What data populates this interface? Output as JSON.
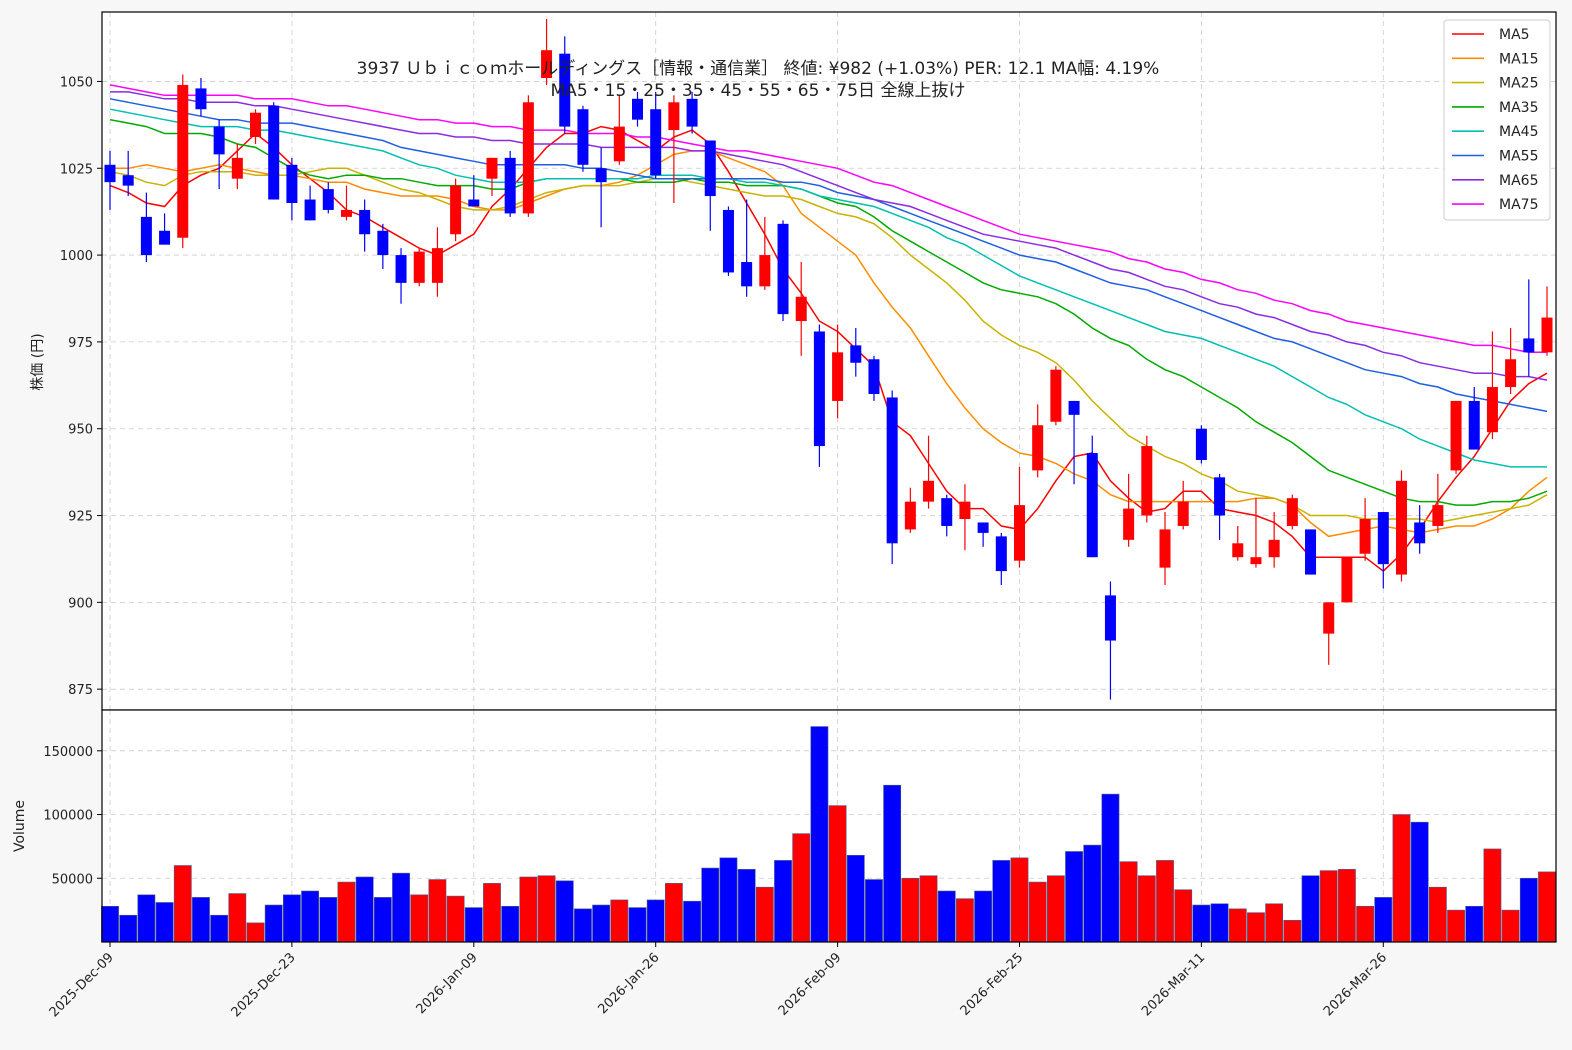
{
  "chart_data": {
    "type": "candlestick",
    "title_line1": "3937 Ｕｂｉｃｏｍホールディングス［情報・通信業］ 終値: ¥982 (+1.03%)  PER: 12.1  MA幅: 4.19%",
    "title_line2": "MA5・15・25・35・45・55・65・75日 全線上抜け",
    "ylabel_price": "株価 (円)",
    "ylabel_volume": "Volume",
    "price_ylim": [
      869,
      1070
    ],
    "price_yticks": [
      875,
      900,
      925,
      950,
      975,
      1000,
      1025,
      1050
    ],
    "volume_ylim": [
      0,
      182000
    ],
    "volume_yticks": [
      50000,
      100000,
      150000
    ],
    "xtick_labels": [
      {
        "index": 0,
        "label": "2025-Dec-09"
      },
      {
        "index": 10,
        "label": "2025-Dec-23"
      },
      {
        "index": 20,
        "label": "2026-Jan-09"
      },
      {
        "index": 30,
        "label": "2026-Jan-26"
      },
      {
        "index": 40,
        "label": "2026-Feb-09"
      },
      {
        "index": 50,
        "label": "2026-Feb-25"
      },
      {
        "index": 60,
        "label": "2026-Mar-11"
      },
      {
        "index": 70,
        "label": "2026-Mar-26"
      }
    ],
    "grid": true,
    "legend_position": "top-right",
    "up_color": "#ff0000",
    "down_color": "#0000ff",
    "candles": [
      [
        1026,
        1030,
        1013,
        1021,
        28000
      ],
      [
        1023,
        1030,
        1017,
        1020,
        21000
      ],
      [
        1011,
        1018,
        998,
        1000,
        37000
      ],
      [
        1007,
        1012,
        1003,
        1003,
        31000
      ],
      [
        1005,
        1052,
        1002,
        1049,
        60000
      ],
      [
        1048,
        1051,
        1040,
        1042,
        35000
      ],
      [
        1037,
        1039,
        1019,
        1029,
        21000
      ],
      [
        1022,
        1032,
        1019,
        1028,
        38000
      ],
      [
        1034,
        1042,
        1032,
        1041,
        15000
      ],
      [
        1043,
        1044,
        1016,
        1016,
        29000
      ],
      [
        1026,
        1028,
        1010,
        1015,
        37000
      ],
      [
        1016,
        1020,
        1010,
        1010,
        40000
      ],
      [
        1019,
        1021,
        1012,
        1013,
        35000
      ],
      [
        1011,
        1020,
        1010,
        1013,
        47000
      ],
      [
        1013,
        1016,
        1001,
        1006,
        51000
      ],
      [
        1007,
        1009,
        996,
        1000,
        35000
      ],
      [
        1000,
        1002,
        986,
        992,
        54000
      ],
      [
        992,
        1002,
        991,
        1001,
        37000
      ],
      [
        992,
        1008,
        988,
        1002,
        49000
      ],
      [
        1006,
        1022,
        1004,
        1020,
        36000
      ],
      [
        1016,
        1023,
        1014,
        1014,
        27000
      ],
      [
        1022,
        1028,
        1017,
        1028,
        46000
      ],
      [
        1028,
        1030,
        1011,
        1012,
        28000
      ],
      [
        1012,
        1046,
        1011,
        1044,
        51000
      ],
      [
        1051,
        1068,
        1049,
        1059,
        52000
      ],
      [
        1058,
        1063,
        1035,
        1037,
        48000
      ],
      [
        1042,
        1043,
        1024,
        1026,
        26000
      ],
      [
        1025,
        1031,
        1008,
        1021,
        29000
      ],
      [
        1027,
        1046,
        1026,
        1037,
        33000
      ],
      [
        1045,
        1047,
        1037,
        1039,
        27000
      ],
      [
        1042,
        1047,
        1022,
        1023,
        33000
      ],
      [
        1036,
        1046,
        1015,
        1044,
        46000
      ],
      [
        1045,
        1047,
        1035,
        1037,
        32000
      ],
      [
        1033,
        1033,
        1007,
        1017,
        58000
      ],
      [
        1013,
        1014,
        994,
        995,
        66000
      ],
      [
        998,
        1016,
        988,
        991,
        57000
      ],
      [
        991,
        1011,
        990,
        1000,
        43000
      ],
      [
        1009,
        1010,
        981,
        983,
        64000
      ],
      [
        981,
        998,
        971,
        988,
        85000
      ],
      [
        978,
        980,
        939,
        945,
        169000
      ],
      [
        958,
        980,
        953,
        972,
        107000
      ],
      [
        974,
        979,
        965,
        969,
        68000
      ],
      [
        970,
        971,
        958,
        960,
        49000
      ],
      [
        959,
        961,
        911,
        917,
        123000
      ],
      [
        921,
        933,
        920,
        929,
        50000
      ],
      [
        929,
        948,
        927,
        935,
        52000
      ],
      [
        930,
        931,
        919,
        922,
        40000
      ],
      [
        924,
        934,
        915,
        929,
        34000
      ],
      [
        923,
        923,
        916,
        920,
        40000
      ],
      [
        919,
        920,
        905,
        909,
        64000
      ],
      [
        912,
        939,
        910,
        928,
        66000
      ],
      [
        938,
        957,
        936,
        951,
        47000
      ],
      [
        952,
        968,
        951,
        967,
        52000
      ],
      [
        958,
        958,
        934,
        954,
        71000
      ],
      [
        943,
        948,
        913,
        913,
        76000
      ],
      [
        902,
        906,
        872,
        889,
        116000
      ],
      [
        918,
        937,
        916,
        927,
        63000
      ],
      [
        925,
        948,
        923,
        945,
        52000
      ],
      [
        910,
        926,
        905,
        921,
        64000
      ],
      [
        922,
        935,
        921,
        929,
        41000
      ],
      [
        950,
        951,
        940,
        941,
        29000
      ],
      [
        936,
        937,
        918,
        925,
        30000
      ],
      [
        913,
        922,
        912,
        917,
        26000
      ],
      [
        911,
        930,
        910,
        913,
        23000
      ],
      [
        913,
        926,
        910,
        918,
        30000
      ],
      [
        922,
        931,
        921,
        930,
        17000
      ],
      [
        921,
        921,
        908,
        908,
        52000
      ],
      [
        891,
        900,
        882,
        900,
        56000
      ],
      [
        900,
        913,
        900,
        913,
        57000
      ],
      [
        914,
        930,
        912,
        924,
        28000
      ],
      [
        926,
        926,
        904,
        911,
        35000
      ],
      [
        908,
        938,
        906,
        935,
        100000
      ],
      [
        923,
        928,
        914,
        917,
        94000
      ],
      [
        922,
        937,
        920,
        928,
        43000
      ],
      [
        938,
        958,
        937,
        958,
        25000
      ],
      [
        958,
        962,
        944,
        944,
        28000
      ],
      [
        949,
        978,
        947,
        962,
        73000
      ],
      [
        962,
        979,
        960,
        970,
        25000
      ],
      [
        976,
        993,
        965,
        972,
        50000
      ],
      [
        972,
        991,
        971,
        982,
        55000
      ]
    ],
    "series": [
      {
        "name": "MA5",
        "color": "#ff0000",
        "values": [
          1020,
          1018,
          1015,
          1014,
          1020,
          1023,
          1025,
          1030,
          1035,
          1031,
          1026,
          1022,
          1018,
          1013,
          1011,
          1008,
          1005,
          1002,
          1000,
          1003,
          1006,
          1014,
          1019,
          1025,
          1031,
          1035,
          1035,
          1037,
          1036,
          1033,
          1030,
          1034,
          1036,
          1032,
          1024,
          1015,
          1006,
          996,
          989,
          981,
          978,
          973,
          968,
          952,
          948,
          940,
          932,
          927,
          927,
          922,
          921,
          927,
          935,
          942,
          943,
          935,
          930,
          926,
          927,
          932,
          932,
          927,
          926,
          925,
          923,
          919,
          913,
          913,
          913,
          913,
          909,
          914,
          921,
          929,
          936,
          942,
          950,
          958,
          963,
          966
        ]
      },
      {
        "name": "MA15",
        "color": "#ff8c00",
        "values": [
          1025,
          1025,
          1026,
          1025,
          1024,
          1025,
          1026,
          1025,
          1024,
          1023,
          1023,
          1022,
          1021,
          1021,
          1019,
          1018,
          1017,
          1017,
          1017,
          1016,
          1014,
          1013,
          1013,
          1015,
          1017,
          1019,
          1020,
          1020,
          1021,
          1023,
          1026,
          1029,
          1030,
          1030,
          1028,
          1026,
          1024,
          1020,
          1012,
          1008,
          1004,
          1000,
          992,
          985,
          979,
          971,
          963,
          956,
          950,
          946,
          943,
          942,
          940,
          937,
          935,
          931,
          929,
          929,
          929,
          929,
          929,
          929,
          929,
          930,
          930,
          928,
          923,
          919,
          920,
          921,
          922,
          921,
          920,
          921,
          922,
          922,
          924,
          927,
          932,
          936
        ]
      },
      {
        "name": "MA25",
        "color": "#c8b400",
        "values": [
          1024,
          1023,
          1021,
          1020,
          1023,
          1024,
          1024,
          1024,
          1023,
          1023,
          1023,
          1024,
          1025,
          1025,
          1023,
          1021,
          1019,
          1018,
          1016,
          1014,
          1013,
          1013,
          1014,
          1016,
          1018,
          1019,
          1020,
          1020,
          1020,
          1021,
          1022,
          1022,
          1021,
          1020,
          1019,
          1018,
          1017,
          1017,
          1016,
          1014,
          1012,
          1011,
          1009,
          1005,
          1000,
          996,
          992,
          987,
          981,
          977,
          974,
          972,
          969,
          964,
          958,
          953,
          948,
          945,
          942,
          940,
          937,
          935,
          932,
          931,
          930,
          928,
          925,
          925,
          925,
          924,
          924,
          924,
          924,
          923,
          924,
          925,
          926,
          927,
          928,
          931
        ]
      },
      {
        "name": "MA35",
        "color": "#00aa00",
        "values": [
          1039,
          1038,
          1037,
          1035,
          1035,
          1035,
          1034,
          1032,
          1031,
          1028,
          1025,
          1023,
          1022,
          1023,
          1023,
          1022,
          1022,
          1021,
          1020,
          1020,
          1020,
          1019,
          1019,
          1021,
          1022,
          1022,
          1022,
          1022,
          1022,
          1021,
          1021,
          1021,
          1022,
          1021,
          1021,
          1020,
          1020,
          1020,
          1019,
          1017,
          1015,
          1014,
          1011,
          1007,
          1004,
          1001,
          998,
          995,
          992,
          990,
          989,
          988,
          986,
          983,
          979,
          976,
          974,
          970,
          967,
          965,
          962,
          959,
          956,
          952,
          949,
          946,
          942,
          938,
          936,
          934,
          932,
          930,
          929,
          929,
          928,
          928,
          929,
          929,
          930,
          932
        ]
      },
      {
        "name": "MA45",
        "color": "#00bfb0",
        "values": [
          1042,
          1041,
          1040,
          1039,
          1038,
          1037,
          1037,
          1037,
          1036,
          1036,
          1035,
          1034,
          1033,
          1032,
          1031,
          1030,
          1028,
          1026,
          1025,
          1023,
          1022,
          1021,
          1021,
          1021,
          1022,
          1022,
          1022,
          1022,
          1022,
          1022,
          1023,
          1023,
          1023,
          1022,
          1022,
          1021,
          1021,
          1020,
          1019,
          1017,
          1016,
          1015,
          1014,
          1012,
          1010,
          1008,
          1005,
          1003,
          1000,
          997,
          994,
          992,
          990,
          988,
          986,
          984,
          982,
          980,
          978,
          977,
          976,
          974,
          972,
          970,
          968,
          965,
          962,
          959,
          957,
          954,
          952,
          950,
          947,
          945,
          943,
          941,
          940,
          939,
          939,
          939
        ]
      },
      {
        "name": "MA55",
        "color": "#1f5fe0",
        "values": [
          1045,
          1044,
          1043,
          1042,
          1041,
          1040,
          1039,
          1039,
          1038,
          1038,
          1038,
          1037,
          1036,
          1035,
          1034,
          1033,
          1031,
          1030,
          1029,
          1028,
          1027,
          1026,
          1026,
          1026,
          1026,
          1026,
          1025,
          1025,
          1024,
          1023,
          1022,
          1022,
          1022,
          1022,
          1022,
          1022,
          1022,
          1021,
          1021,
          1020,
          1018,
          1017,
          1016,
          1014,
          1012,
          1010,
          1008,
          1006,
          1004,
          1002,
          1000,
          999,
          998,
          996,
          994,
          992,
          991,
          990,
          988,
          986,
          984,
          982,
          980,
          978,
          976,
          975,
          973,
          971,
          969,
          967,
          966,
          965,
          963,
          962,
          960,
          959,
          958,
          957,
          956,
          955
        ]
      },
      {
        "name": "MA65",
        "color": "#8a2be2",
        "values": [
          1047,
          1047,
          1046,
          1045,
          1045,
          1044,
          1044,
          1044,
          1043,
          1043,
          1042,
          1041,
          1040,
          1039,
          1038,
          1037,
          1036,
          1035,
          1035,
          1034,
          1034,
          1033,
          1033,
          1032,
          1032,
          1032,
          1032,
          1031,
          1031,
          1031,
          1031,
          1031,
          1030,
          1030,
          1029,
          1028,
          1027,
          1026,
          1024,
          1022,
          1020,
          1018,
          1016,
          1015,
          1014,
          1012,
          1010,
          1008,
          1006,
          1005,
          1004,
          1003,
          1002,
          1000,
          998,
          996,
          995,
          993,
          991,
          990,
          988,
          986,
          985,
          983,
          982,
          980,
          978,
          977,
          975,
          974,
          972,
          971,
          969,
          968,
          967,
          966,
          966,
          965,
          965,
          964
        ]
      },
      {
        "name": "MA75",
        "color": "#ff00ff",
        "values": [
          1049,
          1048,
          1047,
          1046,
          1046,
          1046,
          1046,
          1046,
          1045,
          1045,
          1045,
          1044,
          1043,
          1043,
          1042,
          1041,
          1040,
          1039,
          1039,
          1038,
          1038,
          1037,
          1037,
          1036,
          1036,
          1036,
          1035,
          1035,
          1035,
          1034,
          1034,
          1033,
          1032,
          1031,
          1030,
          1030,
          1029,
          1028,
          1027,
          1026,
          1025,
          1023,
          1021,
          1020,
          1018,
          1016,
          1014,
          1012,
          1010,
          1008,
          1006,
          1005,
          1004,
          1003,
          1002,
          1001,
          999,
          998,
          996,
          995,
          993,
          992,
          990,
          989,
          987,
          986,
          984,
          983,
          981,
          980,
          979,
          978,
          977,
          976,
          975,
          974,
          974,
          973,
          972,
          972
        ]
      }
    ]
  }
}
